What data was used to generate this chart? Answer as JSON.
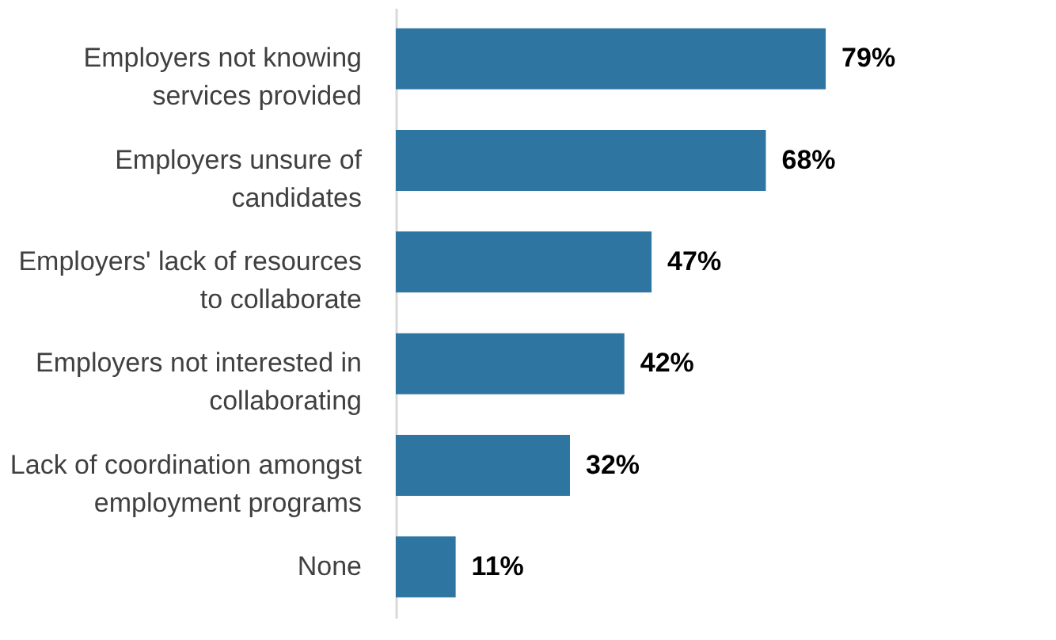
{
  "chart_data": {
    "type": "bar",
    "orientation": "horizontal",
    "categories": [
      "Employers not knowing services provided",
      "Employers unsure of candidates",
      "Employers' lack of resources to collaborate",
      "Employers not interested in collaborating",
      "Lack of coordination amongst employment programs",
      "None"
    ],
    "values": [
      79,
      68,
      47,
      42,
      32,
      11
    ],
    "value_labels": [
      "79%",
      "68%",
      "47%",
      "42%",
      "32%",
      "11%"
    ],
    "color": "#2e75a2",
    "grid": false
  }
}
